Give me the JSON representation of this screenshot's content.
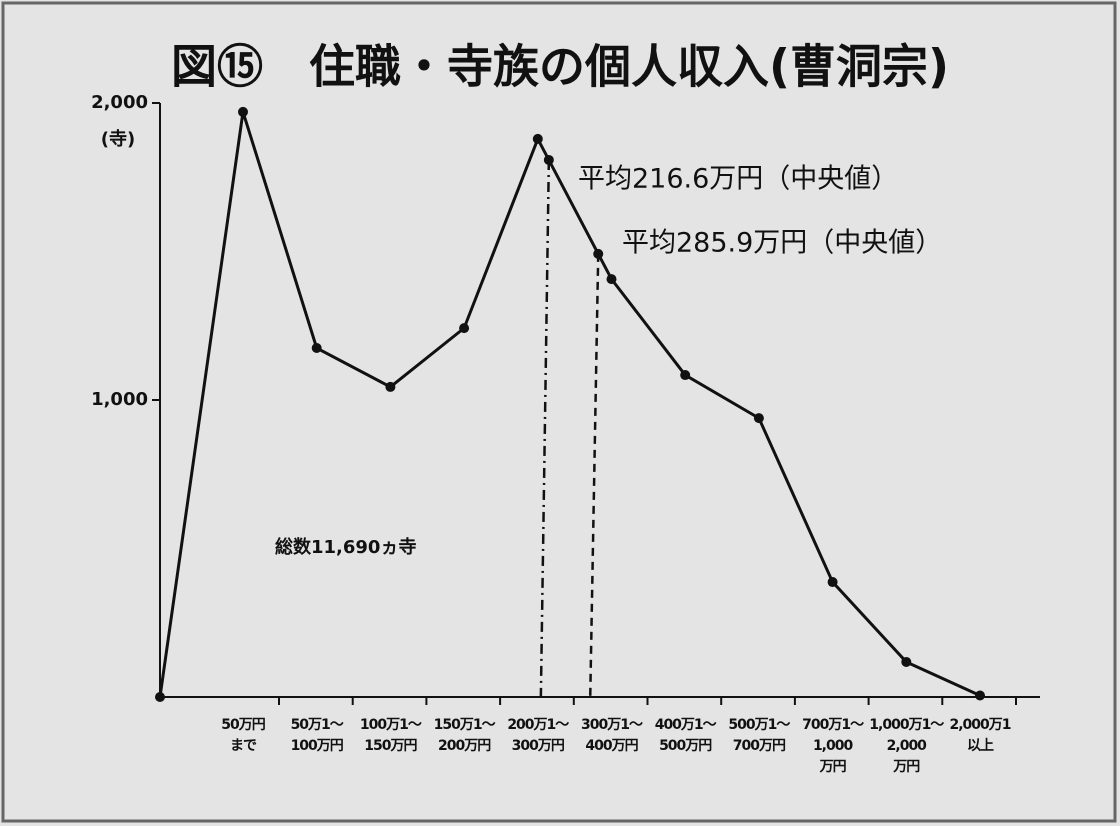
{
  "chart_data": {
    "type": "line",
    "title": "図⑮　住職・寺族の個人収入(曹洞宗)",
    "y_label": "(寺)",
    "categories": [
      null,
      "50万円\nまで",
      "50万1～\n100万円",
      "100万1～\n150万円",
      "150万1～\n200万円",
      "200万1～\n300万円",
      "300万1～\n400万円",
      "400万1～\n500万円",
      "500万1～\n700万円",
      "700万1～\n1,000\n万円",
      "1,000万1～\n2,000\n万円",
      "2,000万1\n以上"
    ],
    "values": [
      0,
      1970,
      1175,
      1044,
      1242,
      1879,
      1407,
      1084,
      939,
      387,
      118,
      5
    ],
    "color": "#111111",
    "ylim": [
      0,
      2000
    ],
    "yticks": [
      {
        "value": 1000,
        "label": "1,000"
      },
      {
        "value": 2000,
        "label": "2,000"
      }
    ],
    "annotations": [
      "平均216.6万円（中央値）",
      "平均285.9万円（中央値）",
      "総数11,690ヵ寺"
    ]
  }
}
